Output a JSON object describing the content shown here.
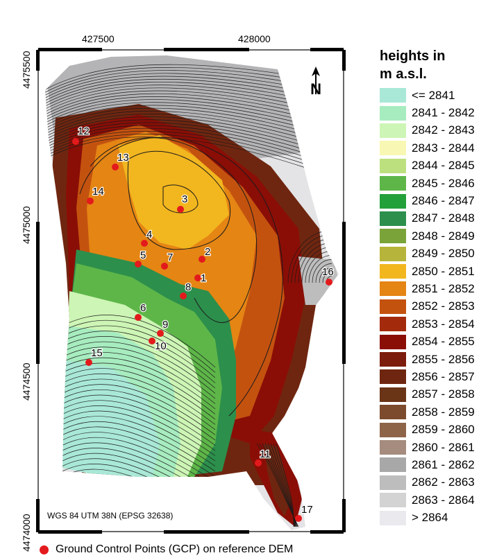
{
  "map": {
    "x_ticks": [
      "427500",
      "428000"
    ],
    "y_ticks": [
      "4475500",
      "4475000",
      "4474500",
      "4474000"
    ],
    "crs_label": "WGS 84 UTM 38N (EPSG 32638)",
    "north_arrow": "N",
    "gcp_color": "#e31a1c",
    "gcps": [
      "1",
      "2",
      "3",
      "4",
      "5",
      "6",
      "7",
      "8",
      "9",
      "10",
      "11",
      "12",
      "13",
      "14",
      "15",
      "16",
      "17"
    ]
  },
  "legend": {
    "title_line1": "heights in",
    "title_line2": "m a.s.l.",
    "classes": [
      {
        "label": "<= 2841",
        "color": "#a9e8d6"
      },
      {
        "label": "2841 - 2842",
        "color": "#a7ecbf"
      },
      {
        "label": "2842 - 2843",
        "color": "#cdf5b5"
      },
      {
        "label": "2843 - 2844",
        "color": "#f8f7b3"
      },
      {
        "label": "2844 - 2845",
        "color": "#bde07f"
      },
      {
        "label": "2845 - 2846",
        "color": "#5eb649"
      },
      {
        "label": "2846 - 2847",
        "color": "#24a03a"
      },
      {
        "label": "2847 - 2848",
        "color": "#2c8f4c"
      },
      {
        "label": "2848 - 2849",
        "color": "#7aa43a"
      },
      {
        "label": "2849 - 2850",
        "color": "#b6b43a"
      },
      {
        "label": "2850 - 2851",
        "color": "#f2b61f"
      },
      {
        "label": "2851 - 2852",
        "color": "#e48514"
      },
      {
        "label": "2852 - 2853",
        "color": "#c4520f"
      },
      {
        "label": "2853 - 2854",
        "color": "#a32a0b"
      },
      {
        "label": "2854 - 2855",
        "color": "#8a0e06"
      },
      {
        "label": "2855 - 2856",
        "color": "#7c1c0c"
      },
      {
        "label": "2856 - 2857",
        "color": "#6f2610"
      },
      {
        "label": "2857 - 2858",
        "color": "#6a3417"
      },
      {
        "label": "2858 - 2859",
        "color": "#7c4a2c"
      },
      {
        "label": "2859 - 2860",
        "color": "#8e6449"
      },
      {
        "label": "2860 - 2861",
        "color": "#a58c7e"
      },
      {
        "label": "2861 - 2862",
        "color": "#a8a8a8"
      },
      {
        "label": "2862 - 2863",
        "color": "#bdbdbd"
      },
      {
        "label": "2863 - 2864",
        "color": "#d3d3d3"
      },
      {
        "label": "> 2864",
        "color": "#e9e9ee"
      }
    ]
  },
  "gcp_legend": {
    "label": "Ground Control Points (GCP) on reference DEM"
  }
}
